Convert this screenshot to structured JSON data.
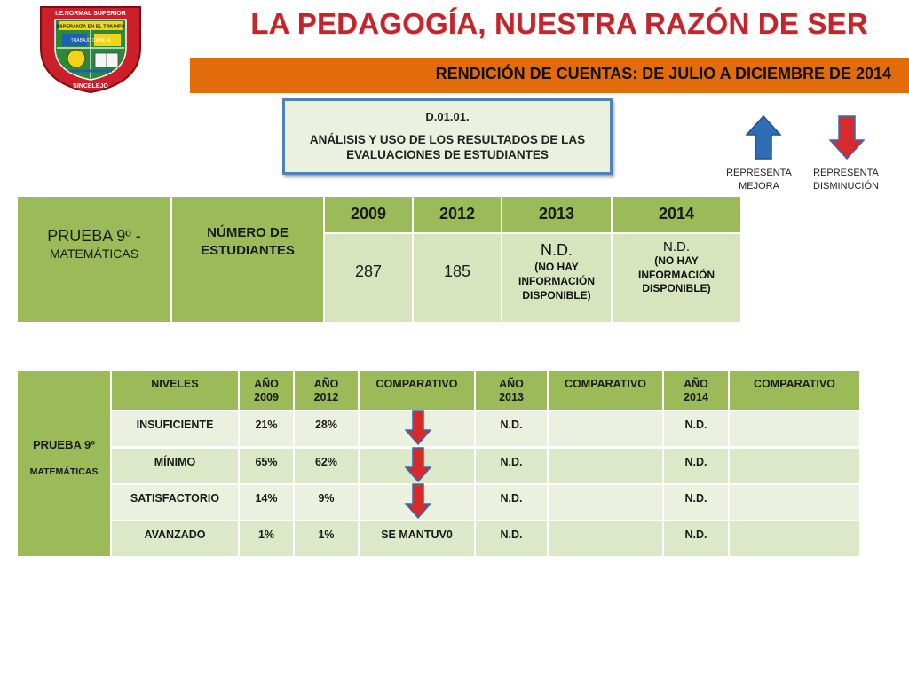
{
  "header": {
    "title": "LA PEDAGOGÍA, NUESTRA RAZÓN DE SER",
    "banner": "RENDICIÓN DE CUENTAS: DE JULIO A DICIEMBRE DE 2014"
  },
  "logo": {
    "top_text": "I.E.NORMAL SUPERIOR",
    "motto": "ESPERANZA EN EL TRIUNFO",
    "words": "TRABAJO  CIENCIA",
    "bottom_text": "SINCELEJO"
  },
  "indicator": {
    "code": "D.01.01.",
    "description": "ANÁLISIS Y USO DE LOS RESULTADOS DE LAS EVALUACIONES DE ESTUDIANTES"
  },
  "legend": {
    "up": {
      "line1": "REPRESENTA",
      "line2": "MEJORA",
      "color": "#2f6db5"
    },
    "down": {
      "line1": "REPRESENTA",
      "line2": "DISMINUCIÓN",
      "color": "#d72a2a"
    }
  },
  "table1": {
    "subject_line1": "PRUEBA 9º -",
    "subject_line2": "MATEMÁTICAS",
    "students_label_line1": "NÚMERO DE",
    "students_label_line2": "ESTUDIANTES",
    "years": [
      "2009",
      "2012",
      "2013",
      "2014"
    ],
    "values": {
      "y2009": "287",
      "y2012": "185",
      "y2013_main": "N.D.",
      "y2013_note": "(NO HAY INFORMACIÓN DISPONIBLE)",
      "y2014_main": "N.D.",
      "y2014_note": "(NO HAY INFORMACIÓN DISPONIBLE)"
    }
  },
  "table2": {
    "subject_line1": "PRUEBA 9º",
    "subject_line2": "MATEMÁTICAS",
    "headers": {
      "levels": "NIVELES",
      "y2009": "AÑO 2009",
      "y2012": "AÑO 2012",
      "comp1": "COMPARATIVO",
      "y2013": "AÑO 2013",
      "comp2": "COMPARATIVO",
      "y2014": "AÑO 2014",
      "comp3": "COMPARATIVO"
    },
    "rows": [
      {
        "level": "INSUFICIENTE",
        "y2009": "21%",
        "y2012": "28%",
        "comp1": "",
        "y2013": "N.D.",
        "y2014": "N.D.",
        "arrow": "down"
      },
      {
        "level": "MÍNIMO",
        "y2009": "65%",
        "y2012": "62%",
        "comp1": "",
        "y2013": "N.D.",
        "y2014": "N.D.",
        "arrow": "down"
      },
      {
        "level": "SATISFACTORIO",
        "y2009": "14%",
        "y2012": "9%",
        "comp1": "",
        "y2013": "N.D.",
        "y2014": "N.D.",
        "arrow": "down"
      },
      {
        "level": "AVANZADO",
        "y2009": "1%",
        "y2012": "1%",
        "comp1": "SE MANTUV0",
        "y2013": "N.D.",
        "y2014": "N.D.",
        "arrow": "none"
      }
    ]
  }
}
